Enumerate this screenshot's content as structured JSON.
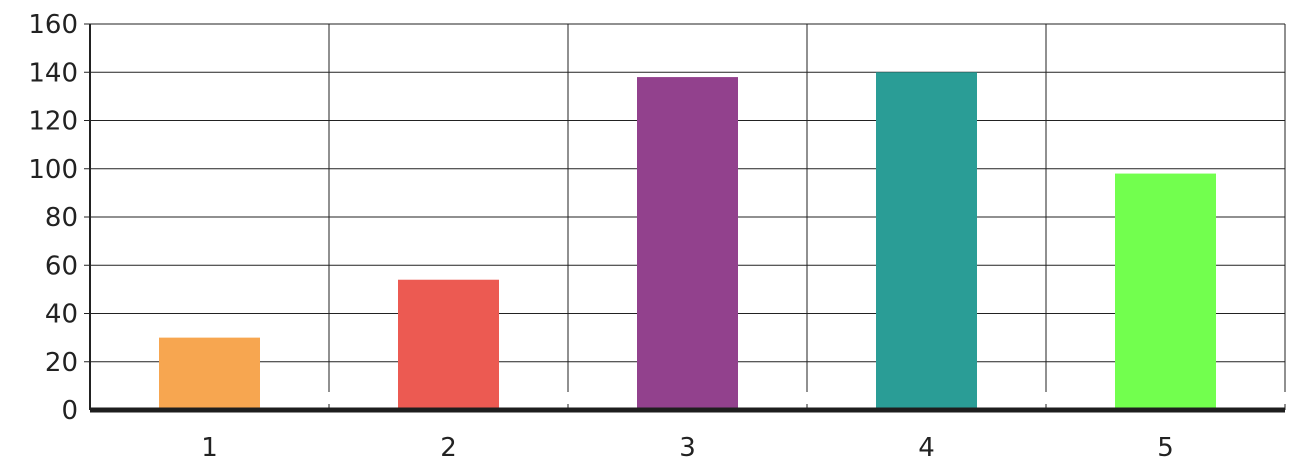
{
  "chart_data": {
    "type": "bar",
    "categories": [
      "1",
      "2",
      "3",
      "4",
      "5"
    ],
    "values": [
      30,
      54,
      138,
      140,
      98
    ],
    "ylim": [
      0,
      160
    ],
    "yticks": [
      "0",
      "20",
      "40",
      "60",
      "80",
      "100",
      "120",
      "140",
      "160"
    ],
    "grid": true,
    "colors": [
      "#f7a650",
      "#ec5a52",
      "#92418d",
      "#2a9d96",
      "#72ff4e"
    ],
    "title": "",
    "xlabel": "",
    "ylabel": ""
  }
}
